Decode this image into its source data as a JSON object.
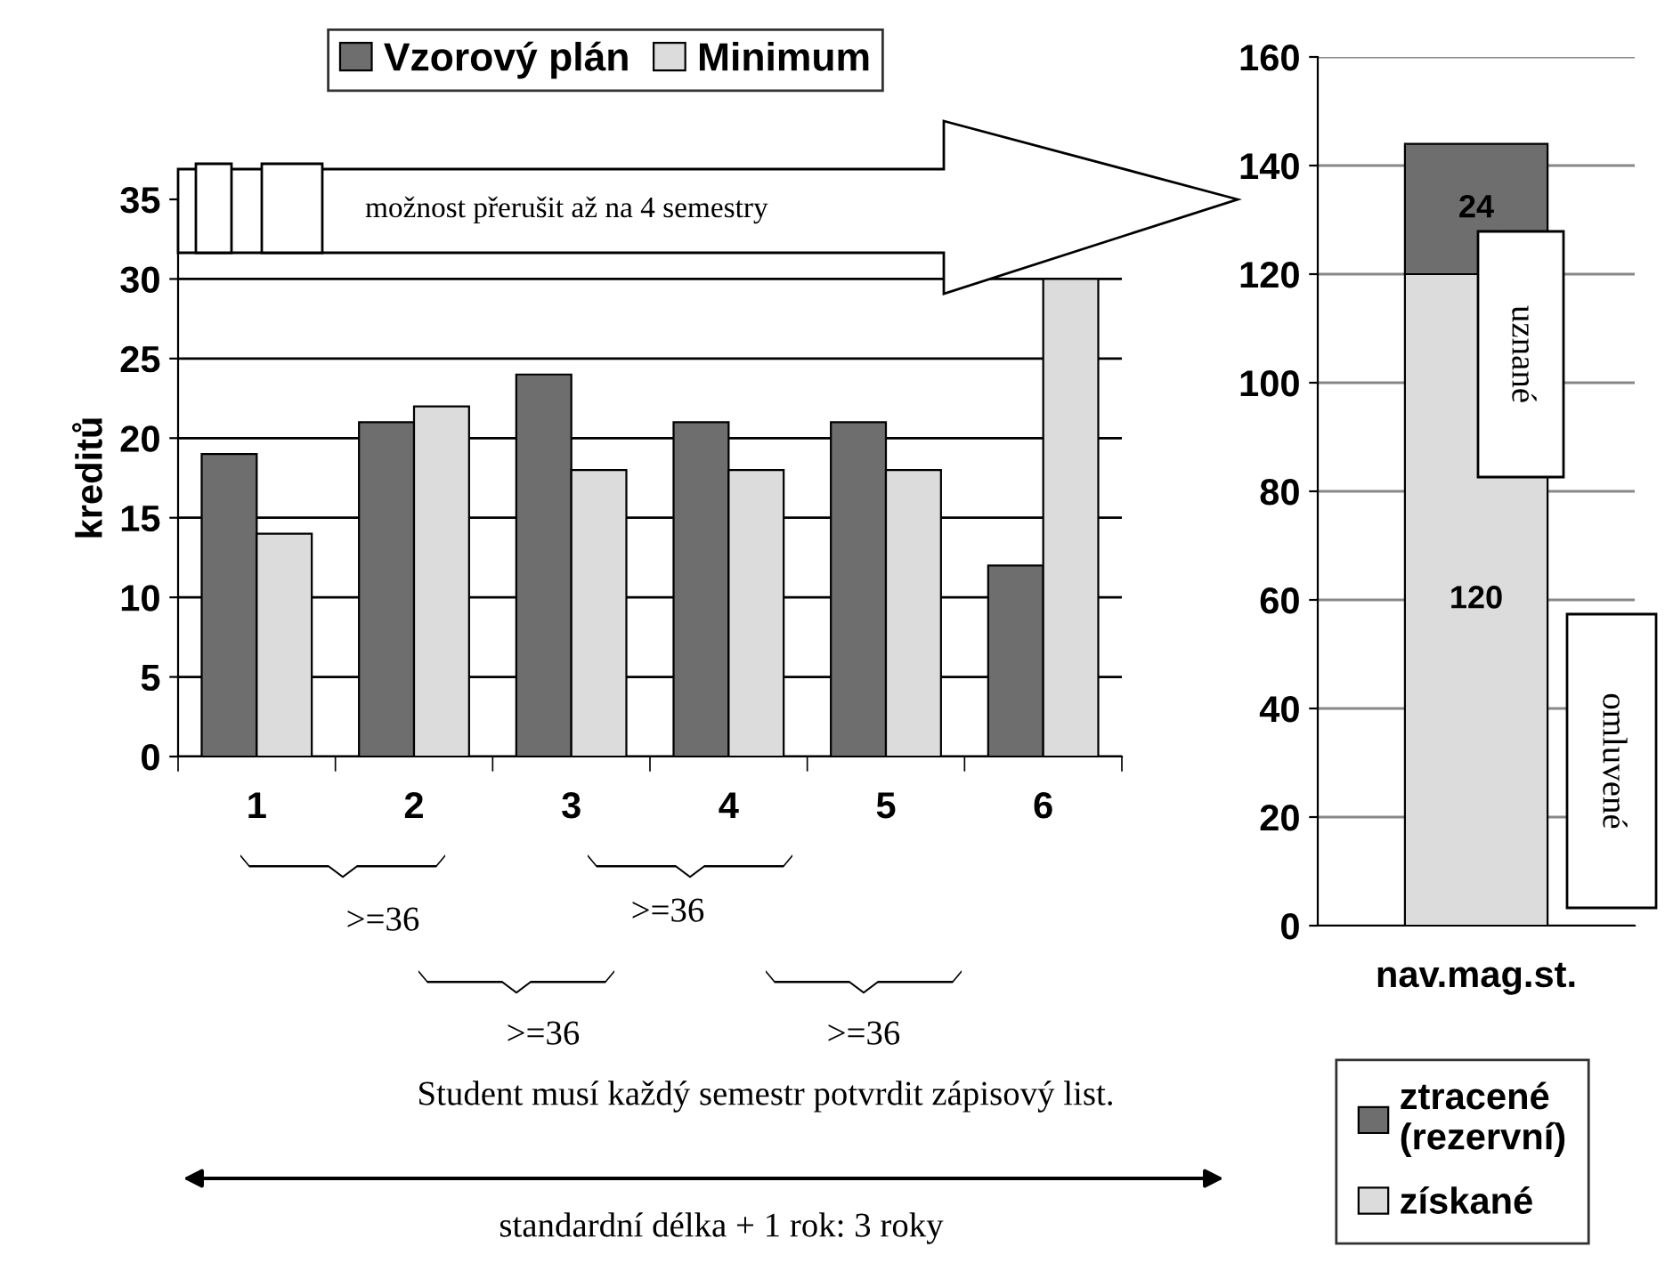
{
  "chart_data": [
    {
      "type": "bar",
      "ylabel": "kreditů",
      "categories": [
        "1",
        "2",
        "3",
        "4",
        "5",
        "6"
      ],
      "series": [
        {
          "name": "Vzorový plán",
          "color": "#6e6e6e",
          "values": [
            19,
            21,
            24,
            21,
            21,
            12
          ]
        },
        {
          "name": "Minimum",
          "color": "#dcdcdc",
          "values": [
            14,
            22,
            18,
            18,
            18,
            30
          ]
        }
      ],
      "ylim": [
        0,
        35
      ],
      "yticks": [
        0,
        5,
        10,
        15,
        20,
        25,
        30,
        35
      ],
      "grid": "y",
      "legend": "top",
      "annotations": [
        "možnost přerušit až na 4 semestry",
        ">=36",
        ">=36",
        ">=36",
        ">=36",
        "Student musí každý semestr potvrdit zápisový list.",
        "standardní délka + 1 rok: 3 roky"
      ]
    },
    {
      "type": "bar",
      "stacked": true,
      "categories": [
        "nav.mag.st."
      ],
      "series": [
        {
          "name": "získané",
          "color": "#dcdcdc",
          "values": [
            120
          ]
        },
        {
          "name": "ztracené\n(rezervní)",
          "color": "#6e6e6e",
          "values": [
            24
          ]
        }
      ],
      "ylim": [
        0,
        160
      ],
      "yticks": [
        0,
        20,
        40,
        60,
        80,
        100,
        120,
        140,
        160
      ],
      "grid": "y",
      "legend": "bottom",
      "data_labels": true,
      "annotations": [
        "uznané",
        "omluvené"
      ]
    }
  ]
}
